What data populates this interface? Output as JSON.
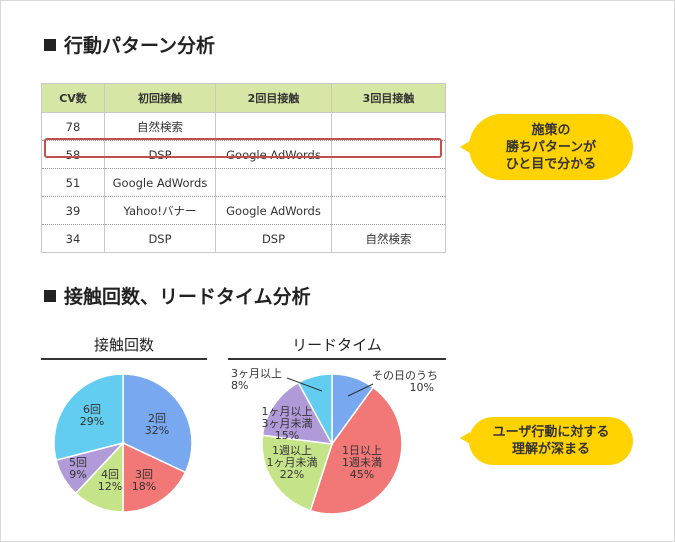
{
  "section1": {
    "title": "行動パターン分析"
  },
  "section2": {
    "title": "接触回数、リードタイム分析"
  },
  "table": {
    "headers": [
      "CV数",
      "初回接触",
      "2回目接触",
      "3回目接触"
    ],
    "rows": [
      [
        "78",
        "自然検索",
        "",
        ""
      ],
      [
        "58",
        "DSP",
        "Google AdWords",
        ""
      ],
      [
        "51",
        "Google AdWords",
        "",
        ""
      ],
      [
        "39",
        "Yahoo!バナー",
        "Google AdWords",
        ""
      ],
      [
        "34",
        "DSP",
        "DSP",
        "自然検索"
      ]
    ],
    "highlight_row": 1
  },
  "callout1": {
    "line1": "施策の",
    "line2": "勝ちパターンが",
    "line3": "ひと目で分かる"
  },
  "callout2": {
    "line1": "ユーザ行動に対する",
    "line2": "理解が深まる"
  },
  "colors": {
    "blue": "#78a8ef",
    "red": "#f27877",
    "green": "#c5e48a",
    "purple": "#b09ad8",
    "cyan": "#62cdf0",
    "callout": "#ffd200",
    "header": "#d6e6a4",
    "highlight": "#c0504d"
  },
  "chart_data": [
    {
      "type": "pie",
      "title": "接触回数",
      "slices": [
        {
          "label": "2回",
          "value": 32,
          "pct": "32%",
          "color": "#78a8ef"
        },
        {
          "label": "3回",
          "value": 18,
          "pct": "18%",
          "color": "#f27877"
        },
        {
          "label": "4回",
          "value": 12,
          "pct": "12%",
          "color": "#c5e48a"
        },
        {
          "label": "5回",
          "value": 9,
          "pct": "9%",
          "color": "#b09ad8"
        },
        {
          "label": "6回",
          "value": 29,
          "pct": "29%",
          "color": "#62cdf0"
        }
      ]
    },
    {
      "type": "pie",
      "title": "リードタイム",
      "slices": [
        {
          "label": "その日のうち",
          "value": 10,
          "pct": "10%",
          "color": "#78a8ef"
        },
        {
          "label": "1日以上\n1週未満",
          "value": 45,
          "pct": "45%",
          "color": "#f27877"
        },
        {
          "label": "1週以上\n1ヶ月未満",
          "value": 22,
          "pct": "22%",
          "color": "#c5e48a"
        },
        {
          "label": "1ヶ月以上\n3ヶ月未満",
          "value": 15,
          "pct": "15%",
          "color": "#b09ad8"
        },
        {
          "label": "3ヶ月以上",
          "value": 8,
          "pct": "8%",
          "color": "#62cdf0"
        }
      ]
    }
  ]
}
